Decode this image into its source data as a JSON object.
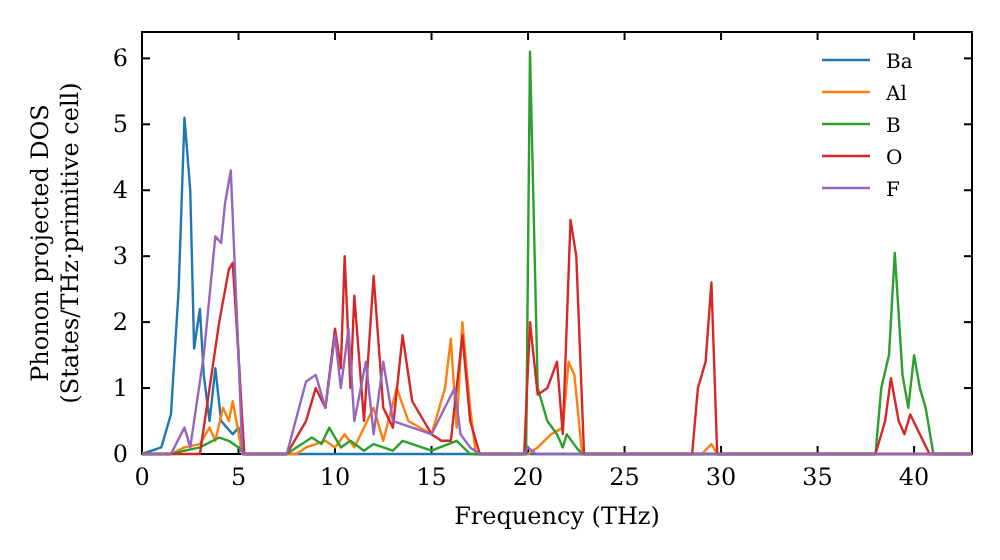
{
  "chart_data": {
    "type": "line",
    "xlabel": "Frequency (THz)",
    "ylabel": "Phonon projected DOS\n(States/THz·primitive cell)",
    "xlim": [
      0,
      43
    ],
    "ylim": [
      0,
      6.4
    ],
    "xticks": [
      0,
      5,
      10,
      15,
      20,
      25,
      30,
      35,
      40
    ],
    "yticks": [
      0,
      1,
      2,
      3,
      4,
      5,
      6
    ],
    "legend": "top right",
    "grid": false,
    "series": [
      {
        "name": "Ba",
        "color": "#1f77b4",
        "x": [
          0,
          1,
          1.5,
          1.9,
          2.2,
          2.5,
          2.7,
          3.0,
          3.2,
          3.5,
          3.8,
          4.1,
          4.4,
          4.7,
          5.0,
          5.2,
          43
        ],
        "values": [
          0,
          0.1,
          0.6,
          2.5,
          5.1,
          4.0,
          1.6,
          2.2,
          1.2,
          0.5,
          1.3,
          0.5,
          0.4,
          0.3,
          0.4,
          0,
          0
        ]
      },
      {
        "name": "Al",
        "color": "#ff7f0e",
        "x": [
          0,
          1.5,
          2.2,
          3,
          3.5,
          3.8,
          4.2,
          4.5,
          4.7,
          5.2,
          8,
          8.5,
          9.5,
          10,
          10.5,
          11,
          12,
          12.5,
          13.2,
          13.8,
          15,
          15.7,
          16,
          16.3,
          16.6,
          17,
          17.3,
          20,
          20.5,
          21.2,
          21.8,
          22.1,
          22.4,
          22.8,
          29,
          29.5,
          29.8,
          43
        ],
        "values": [
          0,
          0,
          0.1,
          0.15,
          0.4,
          0.2,
          0.7,
          0.5,
          0.8,
          0,
          0,
          0.1,
          0.2,
          0.1,
          0.3,
          0.1,
          0.7,
          0.2,
          1.0,
          0.5,
          0.3,
          1.0,
          1.75,
          0.4,
          2.0,
          0.7,
          0,
          0,
          0.1,
          0.3,
          0.4,
          1.4,
          1.2,
          0,
          0,
          0.15,
          0,
          0
        ]
      },
      {
        "name": "B",
        "color": "#2ca02c",
        "x": [
          0,
          1.5,
          2.2,
          3,
          4,
          4.5,
          5,
          5.3,
          7.5,
          8,
          8.8,
          9.3,
          9.7,
          10.3,
          10.8,
          11.5,
          12,
          13,
          13.5,
          15,
          16.3,
          17,
          19.9,
          20.1,
          20.5,
          21,
          21.5,
          21.8,
          22,
          22.5,
          22.8,
          38,
          38.3,
          38.7,
          39,
          39.4,
          39.7,
          40,
          40.3,
          40.6,
          41,
          43
        ],
        "values": [
          0,
          0,
          0.05,
          0.1,
          0.25,
          0.2,
          0.1,
          0,
          0,
          0.1,
          0.25,
          0.15,
          0.4,
          0.1,
          0.2,
          0.05,
          0.15,
          0.05,
          0.2,
          0.05,
          0.2,
          0,
          0,
          6.1,
          1.0,
          0.5,
          0.3,
          0.1,
          0.3,
          0.1,
          0,
          0,
          1.0,
          1.5,
          3.05,
          1.2,
          0.7,
          1.5,
          1.0,
          0.7,
          0,
          0
        ]
      },
      {
        "name": "O",
        "color": "#d62728",
        "x": [
          0,
          3,
          3.5,
          4,
          4.5,
          4.7,
          5,
          5.3,
          7.5,
          8.5,
          9,
          9.5,
          10,
          10.3,
          10.5,
          10.8,
          11,
          11.5,
          12,
          12.5,
          13,
          13.5,
          14,
          15,
          15.5,
          16,
          16.6,
          17,
          17.5,
          19.8,
          20.1,
          20.5,
          21,
          21.5,
          21.8,
          22.2,
          22.5,
          22.9,
          28.5,
          28.8,
          29.2,
          29.5,
          29.8,
          38,
          38.5,
          38.8,
          39.2,
          39.5,
          39.8,
          40.3,
          40.8,
          43
        ],
        "values": [
          0,
          0,
          1.0,
          2.0,
          2.8,
          2.9,
          1.5,
          0,
          0,
          0.5,
          1.0,
          0.7,
          1.9,
          1.3,
          3.0,
          1.0,
          2.4,
          0.5,
          2.7,
          0.7,
          0.4,
          1.8,
          0.8,
          0.3,
          0.2,
          0.2,
          1.8,
          0.5,
          0,
          0,
          2.0,
          0.9,
          1.0,
          1.4,
          0.3,
          3.55,
          3.0,
          0,
          0,
          1.0,
          1.4,
          2.6,
          0,
          0,
          0.5,
          1.15,
          0.5,
          0.3,
          0.6,
          0.3,
          0,
          0
        ]
      },
      {
        "name": "F",
        "color": "#9467bd",
        "x": [
          0,
          1.5,
          2.2,
          2.5,
          3.2,
          3.8,
          4.1,
          4.3,
          4.6,
          5,
          5.2,
          7.5,
          8.5,
          9,
          9.5,
          10,
          10.3,
          10.7,
          11,
          11.6,
          12,
          12.5,
          13,
          14,
          15,
          16.2,
          16.5,
          17,
          17.5,
          19.8,
          20,
          20.4,
          43
        ],
        "values": [
          0,
          0,
          0.4,
          0.1,
          1.5,
          3.3,
          3.2,
          3.8,
          4.3,
          1.5,
          0,
          0,
          1.1,
          1.2,
          0.7,
          1.8,
          1.0,
          1.9,
          0.5,
          1.4,
          0.3,
          1.4,
          0.5,
          0.4,
          0.3,
          1.0,
          0.3,
          0.1,
          0,
          0,
          0.1,
          0,
          0
        ]
      }
    ]
  }
}
